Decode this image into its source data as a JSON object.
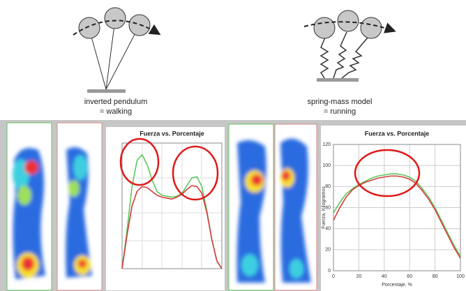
{
  "diagrams": {
    "walking": {
      "label": "inverted pendulum",
      "result": "= walking"
    },
    "running": {
      "label": "spring-mass model",
      "result": "= running"
    }
  },
  "chart_data": [
    {
      "type": "line",
      "title": "Fuerza vs. Porcentaje",
      "x": [
        0,
        5,
        10,
        15,
        20,
        25,
        30,
        35,
        40,
        45,
        50,
        55,
        60,
        65,
        70,
        75,
        80,
        85,
        90,
        95,
        100
      ],
      "xlim": [
        0,
        100
      ],
      "ylim": [
        0,
        130
      ],
      "series": [
        {
          "name": null,
          "color": "#5cc85c",
          "values": [
            0,
            40,
            85,
            112,
            118,
            108,
            92,
            80,
            76,
            75,
            74,
            75,
            78,
            86,
            94,
            95,
            85,
            60,
            30,
            8,
            0
          ]
        },
        {
          "name": null,
          "color": "#d83b3b",
          "values": [
            0,
            35,
            65,
            80,
            85,
            84,
            80,
            76,
            74,
            73,
            72,
            74,
            77,
            82,
            86,
            85,
            78,
            58,
            30,
            8,
            0
          ]
        }
      ]
    },
    {
      "type": "line",
      "title": "Fuerza vs. Porcentaje",
      "x_label": "Porcentaje, %",
      "y_label": "Fuerza, Kilogramos",
      "x": [
        0,
        5,
        10,
        15,
        20,
        25,
        30,
        35,
        40,
        45,
        50,
        55,
        60,
        65,
        70,
        75,
        80,
        85,
        90,
        95,
        100
      ],
      "xlim": [
        0,
        100
      ],
      "ylim": [
        0,
        120
      ],
      "xticks": [
        0,
        20,
        40,
        60,
        80,
        100
      ],
      "yticks": [
        0,
        20,
        40,
        60,
        80,
        100,
        120
      ],
      "grid": true,
      "series": [
        {
          "name": null,
          "color": "#5cc85c",
          "values": [
            55,
            65,
            73,
            78,
            82,
            85,
            88,
            90,
            91,
            92,
            92,
            91,
            89,
            85,
            78,
            70,
            60,
            48,
            36,
            24,
            14
          ]
        },
        {
          "name": null,
          "color": "#d83b3b",
          "values": [
            48,
            60,
            70,
            77,
            81,
            84,
            86,
            88,
            89,
            90,
            90,
            89,
            87,
            83,
            76,
            68,
            58,
            46,
            34,
            22,
            12
          ]
        }
      ]
    }
  ]
}
